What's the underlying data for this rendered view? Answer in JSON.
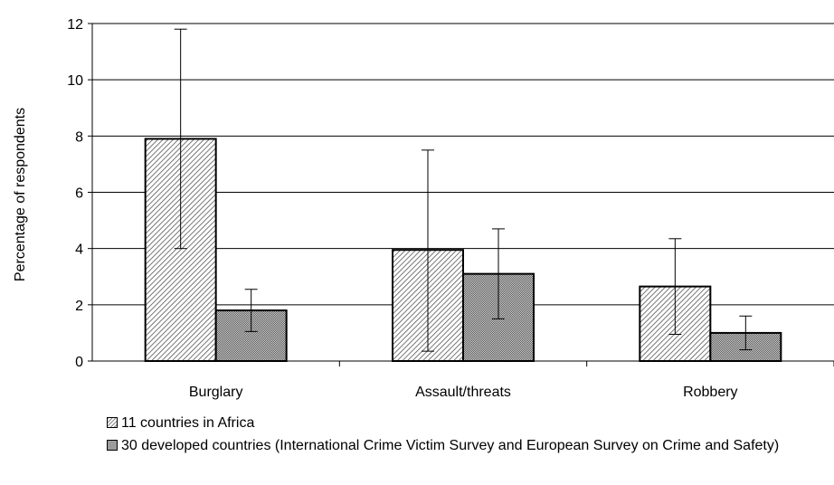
{
  "chart_data": {
    "type": "bar",
    "categories": [
      "Burglary",
      "Assault/threats",
      "Robbery"
    ],
    "series": [
      {
        "name": "11 countries in Africa",
        "values": [
          7.9,
          3.95,
          2.65
        ],
        "error_low": [
          4.0,
          0.35,
          0.95
        ],
        "error_high": [
          11.8,
          7.5,
          4.35
        ]
      },
      {
        "name": "30 developed countries (International Crime Victim Survey and European Survey on Crime and Safety)",
        "values": [
          1.8,
          3.1,
          1.0
        ],
        "error_low": [
          1.05,
          1.5,
          0.4
        ],
        "error_high": [
          2.55,
          4.7,
          1.6
        ]
      }
    ],
    "ylabel": "Percentage of respondents",
    "ylim": [
      0,
      12
    ],
    "yticks": [
      "0",
      "2",
      "4",
      "6",
      "8",
      "10",
      "12"
    ],
    "grid": true,
    "legend_position": "bottom"
  },
  "colors": {
    "series1_pattern": "diagonal-hatch",
    "series2_pattern": "dark-checker",
    "gridline": "#000000"
  }
}
